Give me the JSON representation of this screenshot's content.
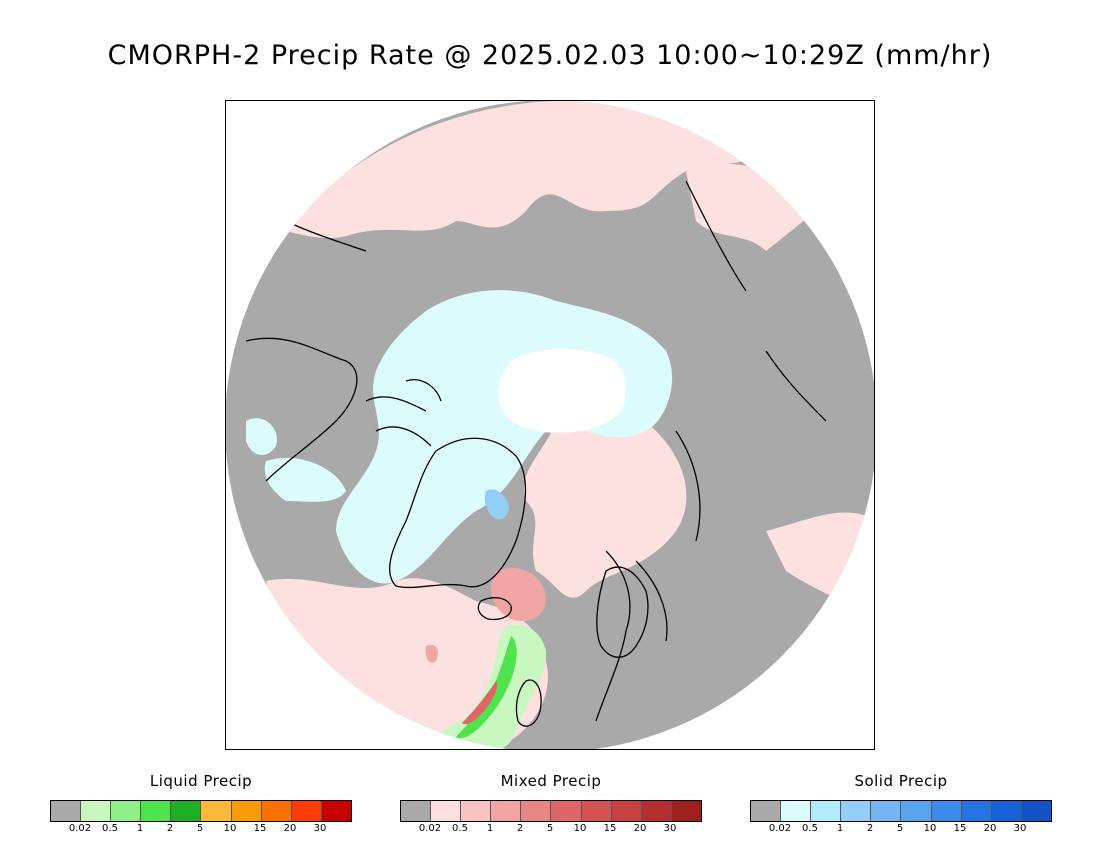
{
  "title": "CMORPH-2 Precip Rate @ 2025.02.03 10:00~10:29Z (mm/hr)",
  "map": {
    "projection": "north polar stereographic",
    "colors": {
      "background_land": "#a9a9a9",
      "ice_cap_white": "#ffffff",
      "coastline": "#000000"
    }
  },
  "legends": [
    {
      "id": "liquid",
      "title": "Liquid Precip",
      "colors": [
        "#a9a9a9",
        "#c8f8c0",
        "#8ff08a",
        "#4fe44d",
        "#1faf24",
        "#fbb93a",
        "#fb9a06",
        "#fb7100",
        "#fb3c06",
        "#c80000"
      ],
      "ticks": [
        "0.02",
        "0.5",
        "1",
        "2",
        "5",
        "10",
        "15",
        "20",
        "30"
      ]
    },
    {
      "id": "mixed",
      "title": "Mixed Precip",
      "colors": [
        "#a9a9a9",
        "#fde0e0",
        "#f9c3c3",
        "#f2a5a5",
        "#e88585",
        "#de6666",
        "#d45252",
        "#c84141",
        "#b52e2e",
        "#9f1f1f"
      ],
      "ticks": [
        "0.02",
        "0.5",
        "1",
        "2",
        "5",
        "10",
        "15",
        "20",
        "30"
      ]
    },
    {
      "id": "solid",
      "title": "Solid Precip",
      "colors": [
        "#a9a9a9",
        "#dcfbfd",
        "#b1ebfa",
        "#94cdf6",
        "#76b6f3",
        "#5aa3f0",
        "#3b8ceb",
        "#2574e4",
        "#1761d8",
        "#1252c6"
      ],
      "ticks": [
        "0.02",
        "0.5",
        "1",
        "2",
        "5",
        "10",
        "15",
        "20",
        "30"
      ]
    }
  ]
}
